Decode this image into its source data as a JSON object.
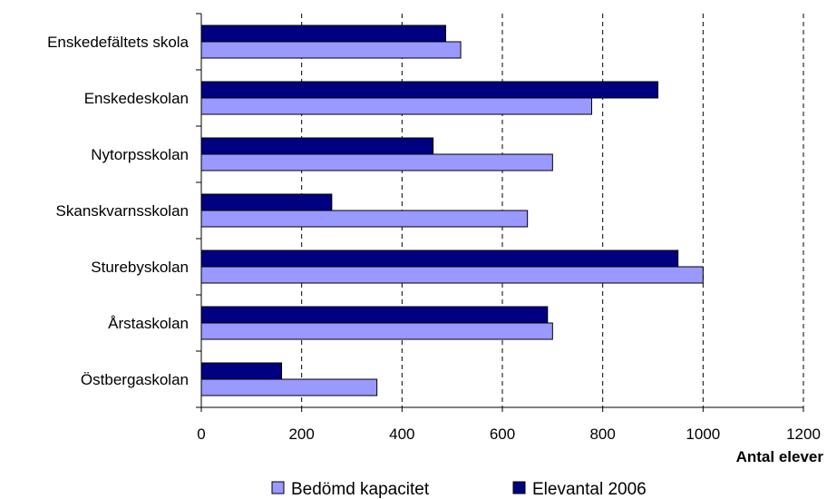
{
  "chart_data": {
    "type": "bar",
    "orientation": "horizontal",
    "categories": [
      "Enskedefältets skola",
      "Enskedeskolan",
      "Nytorpsskolan",
      "Skanskvarnsskolan",
      "Sturebyskolan",
      "Årstaskolan",
      "Östbergaskolan"
    ],
    "series": [
      {
        "name": "Elevantal 2006",
        "color": "#000080",
        "values": [
          487,
          910,
          462,
          260,
          950,
          690,
          160
        ]
      },
      {
        "name": "Bedömd kapacitet",
        "color": "#9999ff",
        "values": [
          517,
          778,
          700,
          650,
          1000,
          700,
          350
        ]
      }
    ],
    "xlabel": "Antal elever",
    "xlim": [
      0,
      1200
    ],
    "xticks": [
      "0",
      "200",
      "400",
      "600",
      "800",
      "1000",
      "1200"
    ],
    "grid": "vertical dashed",
    "legend": {
      "placement": "bottom",
      "order": [
        "Bedömd kapacitet",
        "Elevantal 2006"
      ]
    }
  }
}
